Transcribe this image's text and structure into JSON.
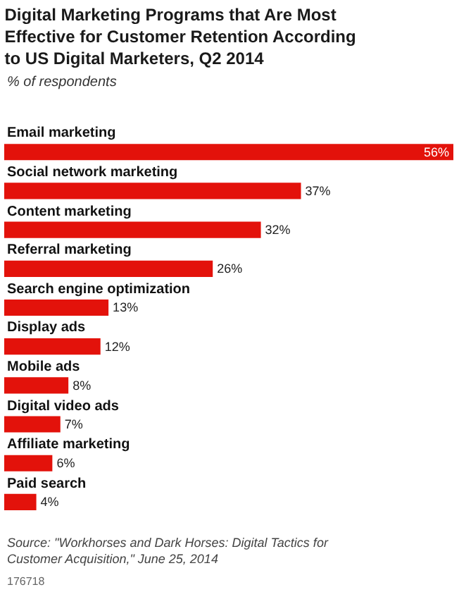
{
  "chart_data": {
    "type": "bar",
    "orientation": "horizontal",
    "title": "Digital Marketing Programs that Are Most Effective for Customer Retention According to US Digital Marketers, Q2 2014",
    "subtitle": "% of respondents",
    "categories": [
      "Email marketing",
      "Social network marketing",
      "Content marketing",
      "Referral marketing",
      "Search engine optimization",
      "Display ads",
      "Mobile ads",
      "Digital video ads",
      "Affiliate marketing",
      "Paid search"
    ],
    "values": [
      56,
      37,
      32,
      26,
      13,
      12,
      8,
      7,
      6,
      4
    ],
    "value_labels": [
      "56%",
      "37%",
      "32%",
      "26%",
      "13%",
      "12%",
      "8%",
      "7%",
      "6%",
      "4%"
    ],
    "color": "#e3120b",
    "xlim": [
      0,
      56
    ],
    "grid": false,
    "legend": false,
    "tick_labels": false,
    "annotations": [
      "Source: \"Workhorses and Dark Horses: Digital Tactics for Customer Acquisition,\" June 25, 2014",
      "176718"
    ]
  }
}
